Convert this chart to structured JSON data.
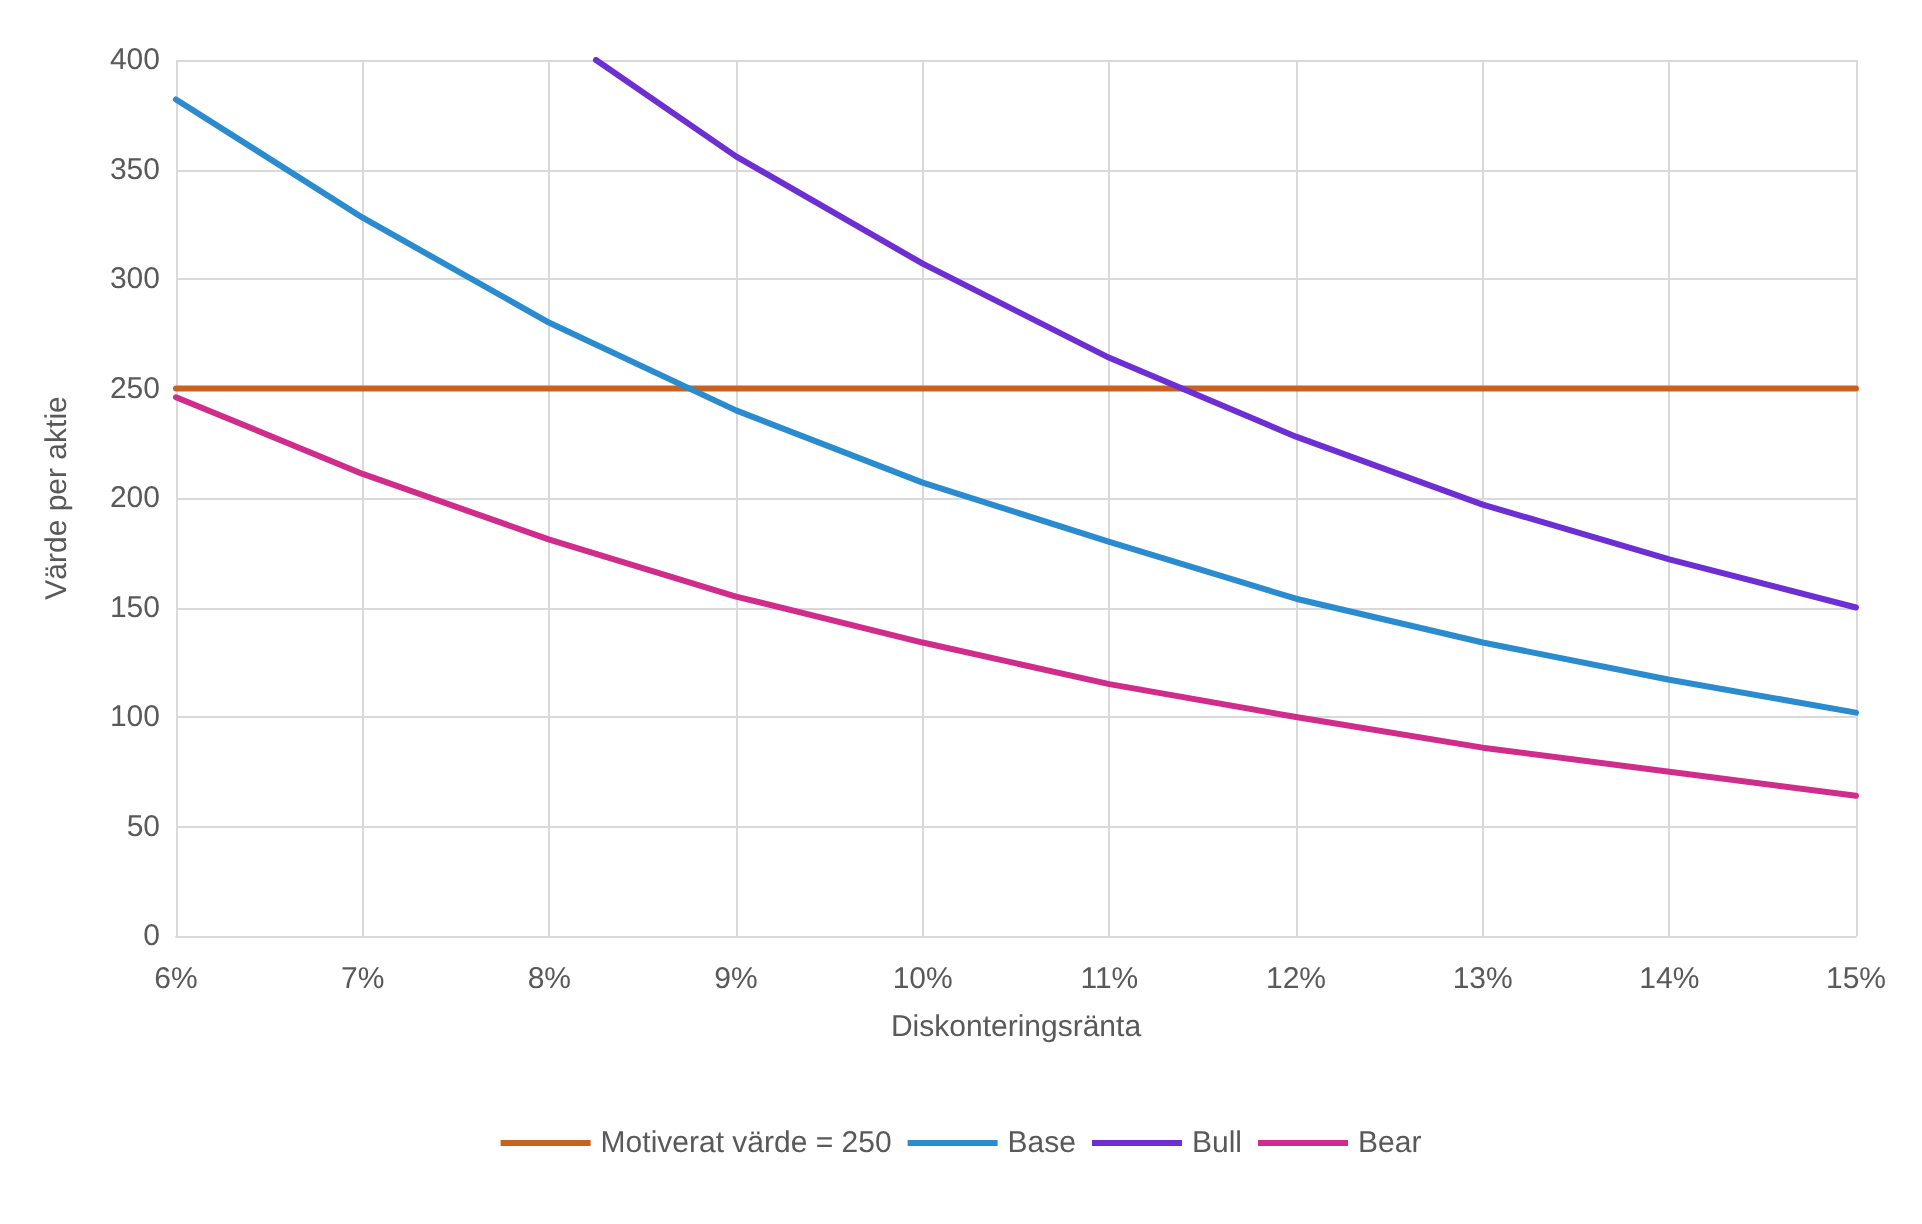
{
  "chart_data": {
    "type": "line",
    "xlabel": "Diskonteringsränta",
    "ylabel": "Värde per aktie",
    "x": [
      6,
      7,
      8,
      9,
      10,
      11,
      12,
      13,
      14,
      15
    ],
    "series": [
      {
        "name": "Motiverat värde = 250",
        "color": "#c9621f",
        "values": [
          250,
          250,
          250,
          250,
          250,
          250,
          250,
          250,
          250,
          250
        ]
      },
      {
        "name": "Base",
        "color": "#2a8ccf",
        "values": [
          382,
          328,
          280,
          240,
          207,
          180,
          154,
          134,
          117,
          102
        ]
      },
      {
        "name": "Bull",
        "color": "#6d2fd3",
        "x": [
          8.25,
          9,
          10,
          11,
          12,
          13,
          14,
          15
        ],
        "values": [
          400,
          356,
          307,
          264,
          228,
          197,
          172,
          150
        ]
      },
      {
        "name": "Bear",
        "color": "#d02c8c",
        "values": [
          246,
          211,
          181,
          155,
          134,
          115,
          100,
          86,
          75,
          64
        ]
      }
    ],
    "xlim": [
      6,
      15
    ],
    "xticks": [
      {
        "value": 6,
        "label": "6%"
      },
      {
        "value": 7,
        "label": "7%"
      },
      {
        "value": 8,
        "label": "8%"
      },
      {
        "value": 9,
        "label": "9%"
      },
      {
        "value": 10,
        "label": "10%"
      },
      {
        "value": 11,
        "label": "11%"
      },
      {
        "value": 12,
        "label": "12%"
      },
      {
        "value": 13,
        "label": "13%"
      },
      {
        "value": 14,
        "label": "14%"
      },
      {
        "value": 15,
        "label": "15%"
      }
    ],
    "ylim": [
      0,
      400
    ],
    "yticks": [
      0,
      50,
      100,
      150,
      200,
      250,
      300,
      350,
      400
    ],
    "grid": true,
    "legend": "bottom",
    "marker": "none",
    "line_style": "solid"
  }
}
